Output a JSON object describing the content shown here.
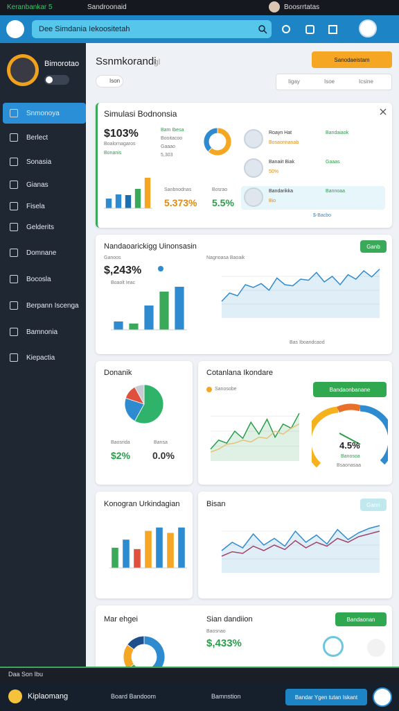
{
  "status_bar": {
    "app": "Keranbankar 5",
    "section": "Sandroonaid",
    "account": "Boosrrtatas"
  },
  "header": {
    "search": "Dee Simdania Iekoositetah"
  },
  "sidebar": {
    "profile_name": "Bimorotao",
    "menu": [
      "Snmonoya",
      "Berlect",
      "Sonasia",
      "Gianas",
      "Fisela",
      "Gelderits",
      "Domnane",
      "Bocosla",
      "Berpann Iscenga",
      "Bamnonia",
      "Kiepactia"
    ]
  },
  "page": {
    "title": "Ssnmkorandi",
    "subtitle": "gl",
    "button": "Sanodaeistam",
    "chip": "Ison",
    "filters": [
      "Iigay",
      "Isoe",
      "Icsine"
    ]
  },
  "summary": {
    "title": "Simulasi Bodnonsia",
    "value": "$103%",
    "note": "Boalornagaros",
    "delta": "Bonanis",
    "label_a": "Bam Ibesa",
    "label_b": "Booitacoo",
    "label_c": "Gaaao",
    "label_d": "5,303",
    "stat_a_label": "Sanbnodnas",
    "stat_b_label": "Bosrao",
    "stat_a": "5.373%",
    "stat_b": "5.5%",
    "link": "$-Bacbo",
    "people": [
      {
        "name": "Roayn Hat",
        "tag": "Bandaiaok",
        "note": "Bosaonnanab"
      },
      {
        "name": "Banaiit Biak",
        "tag": "Gaaas",
        "note": "50%"
      },
      {
        "name": "Bandarikka",
        "tag": "Bannoaa",
        "note": "Bio"
      }
    ]
  },
  "flow": {
    "title": "Nandaoarickigg Uinonsasin",
    "button": "Ganb",
    "note": "Ganoos",
    "value": "$,243%",
    "legend": "Boaolt Ieac",
    "chart_title": "Nagnoasa Baoaik",
    "caption": "Bas Iboandcaod"
  },
  "share": {
    "title": "Donanik",
    "label_a": "Baosrida",
    "label_b": "Bansa",
    "stat_a": "$2%",
    "stat_b": "0.0%"
  },
  "trend": {
    "title": "Cotanlana Ikondare",
    "legend": "Sanosobe",
    "button": "Bandaonbanane",
    "gauge_value": "4.5%",
    "gauge_label": "Banosoa",
    "gauge_note": "Bsaonasaa"
  },
  "category": {
    "title": "Konogran Urkindagian"
  },
  "bisan": {
    "title": "Bisan",
    "button": "Gann"
  },
  "bottom": {
    "title": "Mar ehgei",
    "title_b": "Sian dandiion",
    "note": "Baosnao",
    "value": "$,433%",
    "button": "Bandaonan"
  },
  "footer": {
    "text": "Daa Son Ibu",
    "nav": [
      "Kiplaomang",
      "Board Bandoom",
      "Bamnstion"
    ],
    "button": "Bandar Ygen tutan Iskant"
  },
  "charts": {
    "summary_bars": {
      "type": "bar",
      "ylim": [
        0,
        50
      ],
      "values": [
        14,
        20,
        19,
        28,
        44
      ],
      "colors": [
        "#2e8bd0",
        "#2e8bd0",
        "#1a6fb0",
        "#3aaa5a",
        "#f5a623"
      ]
    },
    "summary_ring": {
      "type": "donut",
      "values": [
        62,
        38
      ],
      "colors": [
        "#f5a623",
        "#2e8bd0"
      ]
    },
    "flow_bars": {
      "type": "bar",
      "ylim": [
        0,
        70
      ],
      "values": [
        12,
        9,
        35,
        55,
        62
      ],
      "colors": [
        "#2e8bd0",
        "#3aaa5a",
        "#2e8bd0",
        "#3aaa5a",
        "#2e8bd0"
      ]
    },
    "flow_line": {
      "type": "area",
      "ylim": [
        0,
        100
      ],
      "series": [
        {
          "color": "#2e8bd0",
          "values": [
            30,
            45,
            40,
            60,
            55,
            62,
            50,
            72,
            60,
            58,
            70,
            68,
            82,
            65,
            75,
            60,
            78,
            70,
            85,
            74,
            88
          ]
        }
      ]
    },
    "share_pie": {
      "type": "pie",
      "values": [
        58,
        22,
        12,
        8
      ],
      "colors": [
        "#2fb36a",
        "#2e8bd0",
        "#e0503c",
        "#c8ccd2"
      ]
    },
    "trend_line": {
      "type": "area",
      "ylim": [
        0,
        100
      ],
      "series": [
        {
          "color": "#2a9d4a",
          "values": [
            20,
            35,
            30,
            50,
            38,
            65,
            45,
            70,
            40,
            62,
            55,
            80
          ]
        },
        {
          "color": "#e3c27a",
          "values": [
            15,
            20,
            28,
            30,
            35,
            32,
            40,
            38,
            50,
            45,
            55,
            62
          ]
        }
      ]
    },
    "category_bars": {
      "type": "bar",
      "ylim": [
        0,
        70
      ],
      "values": [
        30,
        42,
        28,
        55,
        60,
        52,
        60
      ],
      "colors": [
        "#3aaa5a",
        "#2e8bd0",
        "#e0503c",
        "#f5a623",
        "#2e8bd0",
        "#f5a623",
        "#2e8bd0"
      ]
    },
    "bisan_line": {
      "type": "area",
      "ylim": [
        0,
        100
      ],
      "series": [
        {
          "color": "#2e8bd0",
          "values": [
            40,
            55,
            45,
            70,
            50,
            62,
            48,
            75,
            55,
            68,
            52,
            78,
            60,
            72,
            80,
            85
          ]
        },
        {
          "color": "#a0456a",
          "values": [
            30,
            38,
            35,
            48,
            40,
            50,
            42,
            58,
            45,
            55,
            48,
            62,
            55,
            65,
            70,
            75
          ]
        }
      ]
    },
    "mini_donut": {
      "type": "donut",
      "values": [
        40,
        25,
        20,
        15
      ],
      "colors": [
        "#2e8bd0",
        "#3aaa5a",
        "#f5a623",
        "#1f4f8a"
      ]
    }
  }
}
